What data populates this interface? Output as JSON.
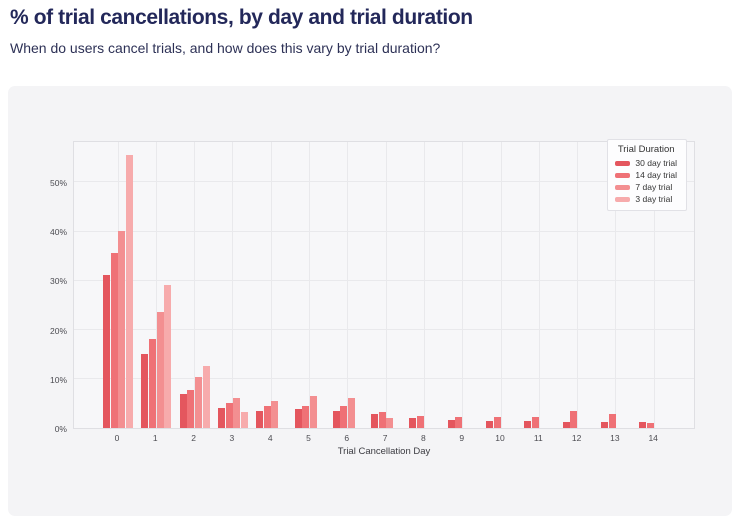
{
  "page": {
    "title": "% of trial cancellations, by day and trial duration",
    "subtitle": "When do users cancel trials, and how does this vary by trial duration?"
  },
  "theme": {
    "title_color": "#23285a",
    "card_background": "#f4f4f6",
    "plot_background": "#f7f7f9",
    "grid_color": "#e9e9ec"
  },
  "chart_data": {
    "type": "bar",
    "title": "% of trial cancellations, by day and trial duration",
    "xlabel": "Trial Cancellation Day",
    "ylabel": "",
    "legend_title": "Trial Duration",
    "legend_position": "top-right",
    "grid": true,
    "categories": [
      "0",
      "1",
      "2",
      "3",
      "4",
      "5",
      "6",
      "7",
      "8",
      "9",
      "10",
      "11",
      "12",
      "13",
      "14"
    ],
    "yticks": [
      {
        "value": 0,
        "label": "0%"
      },
      {
        "value": 10,
        "label": "10%"
      },
      {
        "value": 20,
        "label": "20%"
      },
      {
        "value": 30,
        "label": "30%"
      },
      {
        "value": 40,
        "label": "40%"
      },
      {
        "value": 50,
        "label": "50%"
      }
    ],
    "ylim": [
      0,
      58.5
    ],
    "series": [
      {
        "name": "30 day trial",
        "color": "#e4565e",
        "values": [
          31,
          15,
          7,
          4,
          3.4,
          3.8,
          3.4,
          2.8,
          2.0,
          1.6,
          1.5,
          1.5,
          1.2,
          1.2,
          1.2
        ]
      },
      {
        "name": "14 day trial",
        "color": "#ef7176",
        "values": [
          35.5,
          18,
          7.7,
          5,
          4.4,
          4.5,
          4.4,
          3.2,
          2.5,
          2.2,
          2.2,
          2.3,
          3.5,
          2.9,
          1.0
        ]
      },
      {
        "name": "7 day trial",
        "color": "#f38f91",
        "values": [
          40,
          23.5,
          10.3,
          6,
          5.5,
          6.5,
          6.0,
          2.0,
          null,
          null,
          null,
          null,
          null,
          null,
          null
        ]
      },
      {
        "name": "3 day trial",
        "color": "#f7abac",
        "values": [
          55.5,
          29,
          12.5,
          3.2,
          null,
          null,
          null,
          null,
          null,
          null,
          null,
          null,
          null,
          null,
          null
        ]
      }
    ]
  }
}
